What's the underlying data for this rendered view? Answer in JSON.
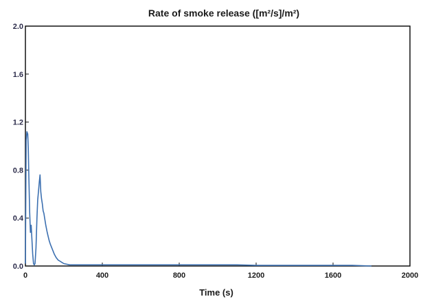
{
  "chart_data": {
    "type": "line",
    "title": "Rate of smoke release ([m²/s]/m²)",
    "xlabel": "Time (s)",
    "ylabel": "",
    "xlim": [
      0,
      2000
    ],
    "ylim": [
      0.0,
      2.0
    ],
    "x_ticks": [
      "0",
      "400",
      "800",
      "1200",
      "1600",
      "2000"
    ],
    "y_ticks": [
      "0.0",
      "0.4",
      "0.8",
      "1.2",
      "1.6",
      "2.0"
    ],
    "grid": false,
    "series": [
      {
        "color": "#3b6fb0",
        "x": [
          0,
          4,
          8,
          12,
          15,
          18,
          22,
          26,
          30,
          34,
          38,
          42,
          46,
          50,
          55,
          60,
          64,
          68,
          72,
          76,
          80,
          84,
          88,
          92,
          96,
          100,
          106,
          112,
          118,
          124,
          130,
          140,
          150,
          160,
          170,
          180,
          190,
          200,
          215,
          230,
          250,
          300,
          400,
          500,
          600,
          700,
          800,
          900,
          1000,
          1100,
          1200,
          1300,
          1400,
          1500,
          1600,
          1700,
          1800
        ],
        "y": [
          0.02,
          1.05,
          1.12,
          1.1,
          0.98,
          0.75,
          0.45,
          0.28,
          0.34,
          0.22,
          0.1,
          0.02,
          0.01,
          0.02,
          0.15,
          0.4,
          0.55,
          0.62,
          0.7,
          0.76,
          0.62,
          0.56,
          0.52,
          0.46,
          0.44,
          0.4,
          0.34,
          0.29,
          0.25,
          0.21,
          0.18,
          0.14,
          0.1,
          0.07,
          0.05,
          0.04,
          0.03,
          0.02,
          0.015,
          0.01,
          0.01,
          0.01,
          0.01,
          0.01,
          0.01,
          0.01,
          0.01,
          0.01,
          0.01,
          0.01,
          0.005,
          0.005,
          0.005,
          0.005,
          0.005,
          0.005,
          0.0
        ]
      }
    ]
  }
}
